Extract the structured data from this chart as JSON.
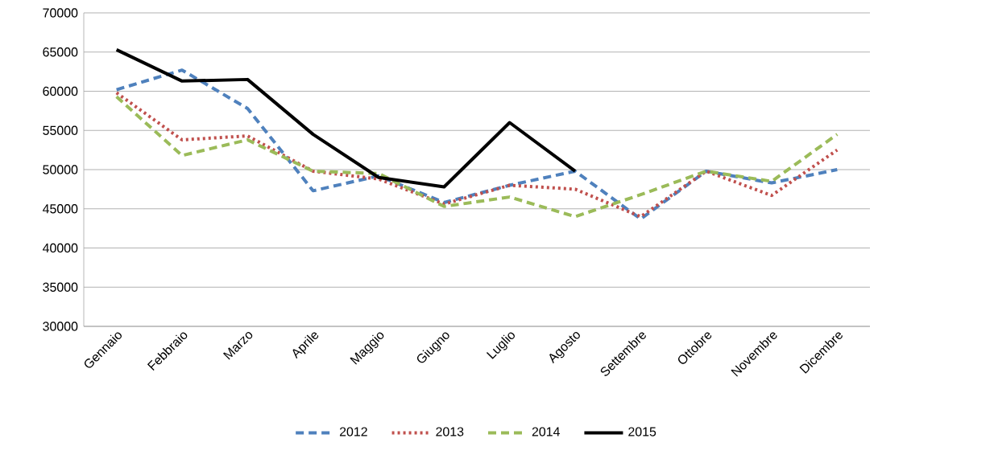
{
  "chart_data": {
    "type": "line",
    "categories": [
      "Gennaio",
      "Febbraio",
      "Marzo",
      "Aprile",
      "Maggio",
      "Giugno",
      "Luglio",
      "Agosto",
      "Settembre",
      "Ottobre",
      "Novembre",
      "Dicembre"
    ],
    "series": [
      {
        "name": "2012",
        "color": "#4f81bd",
        "line_style": "dashed",
        "values": [
          60200,
          62700,
          57800,
          47300,
          49200,
          45800,
          48000,
          49800,
          43700,
          49800,
          48300,
          50000
        ]
      },
      {
        "name": "2013",
        "color": "#c0504d",
        "line_style": "dotted",
        "values": [
          59800,
          53800,
          54300,
          49800,
          48800,
          45600,
          48000,
          47500,
          44000,
          49800,
          46700,
          52500
        ]
      },
      {
        "name": "2014",
        "color": "#9bbb59",
        "line_style": "dashed",
        "values": [
          59300,
          51800,
          53800,
          49800,
          49500,
          45300,
          46500,
          44000,
          46800,
          49800,
          48500,
          54500
        ]
      },
      {
        "name": "2015",
        "color": "#000000",
        "line_style": "solid",
        "values": [
          65300,
          61300,
          61500,
          54500,
          49000,
          47800,
          56000,
          49800,
          null,
          null,
          null,
          null
        ]
      }
    ],
    "ylim": [
      30000,
      70000
    ],
    "yticks": [
      30000,
      35000,
      40000,
      45000,
      50000,
      55000,
      60000,
      65000,
      70000
    ],
    "grid": "y",
    "legend": "bottom",
    "marker": "none"
  }
}
